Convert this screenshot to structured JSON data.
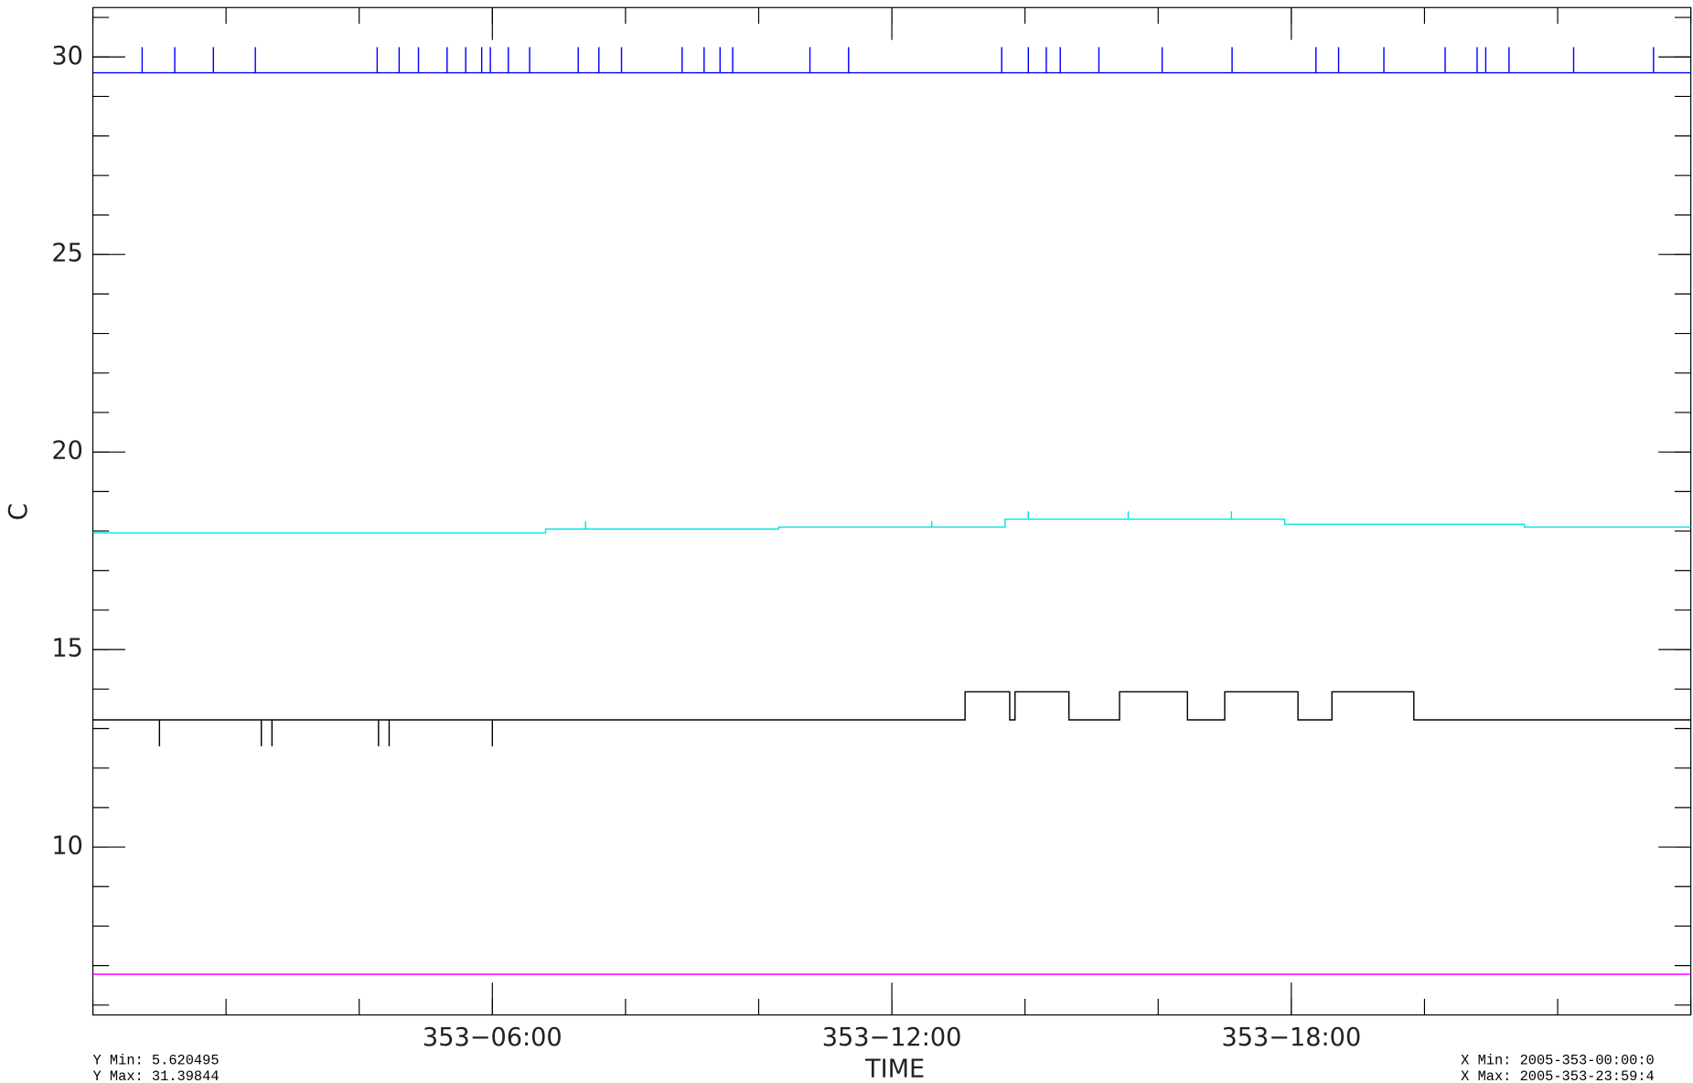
{
  "chart_data": {
    "type": "line",
    "y_label": "C",
    "x_label": "TIME",
    "stats": [
      "Y Min: 5.620495",
      "Y Max: 31.39844",
      "X Min: 2005-353-00:00:0",
      "X Max: 2005-353-23:59:4"
    ],
    "xlim": [
      0,
      24
    ],
    "ylim": [
      5.75,
      31.25
    ],
    "xticks": [
      {
        "value": 6,
        "label": "353−06:00"
      },
      {
        "value": 12,
        "label": "353−12:00"
      },
      {
        "value": 18,
        "label": "353−18:00"
      }
    ],
    "yticks": [
      10,
      15,
      20,
      25,
      30
    ],
    "x_minor_step": 2,
    "y_minor_step": 1,
    "series": [
      {
        "color": "#0000ff",
        "x": [
          0,
          0.74,
          0.74,
          0.74,
          1.23,
          1.23,
          1.23,
          1.81,
          1.81,
          1.81,
          2.44,
          2.44,
          2.44,
          4.27,
          4.27,
          4.27,
          4.6,
          4.6,
          4.6,
          4.89,
          4.89,
          4.89,
          5.32,
          5.32,
          5.32,
          5.6,
          5.6,
          5.6,
          5.84,
          5.84,
          5.84,
          5.97,
          5.97,
          5.97,
          6.24,
          6.24,
          6.24,
          6.56,
          6.56,
          6.56,
          7.29,
          7.29,
          7.29,
          7.6,
          7.6,
          7.6,
          7.94,
          7.94,
          7.94,
          8.85,
          8.85,
          8.85,
          9.18,
          9.18,
          9.18,
          9.42,
          9.42,
          9.42,
          9.61,
          9.61,
          9.61,
          10.77,
          10.77,
          10.77,
          11.35,
          11.35,
          11.35,
          13.65,
          13.65,
          13.65,
          14.05,
          14.05,
          14.05,
          14.32,
          14.32,
          14.32,
          14.53,
          14.53,
          14.53,
          15.11,
          15.11,
          15.11,
          16.06,
          16.06,
          16.06,
          17.11,
          17.11,
          17.11,
          18.37,
          18.37,
          18.37,
          18.71,
          18.71,
          18.71,
          19.39,
          19.39,
          19.39,
          20.31,
          20.31,
          20.31,
          20.79,
          20.79,
          20.79,
          20.92,
          20.92,
          20.92,
          21.27,
          21.27,
          21.27,
          22.24,
          22.24,
          22.24,
          23.44,
          23.44,
          23.44,
          24
        ],
        "values": [
          29.6,
          29.6,
          30.25,
          29.6,
          29.6,
          30.25,
          29.6,
          29.6,
          30.25,
          29.6,
          29.6,
          30.25,
          29.6,
          29.6,
          30.25,
          29.6,
          29.6,
          30.25,
          29.6,
          29.6,
          30.25,
          29.6,
          29.6,
          30.25,
          29.6,
          29.6,
          30.25,
          29.6,
          29.6,
          30.25,
          29.6,
          29.6,
          30.25,
          29.6,
          29.6,
          30.25,
          29.6,
          29.6,
          30.25,
          29.6,
          29.6,
          30.25,
          29.6,
          29.6,
          30.25,
          29.6,
          29.6,
          30.25,
          29.6,
          29.6,
          30.25,
          29.6,
          29.6,
          30.25,
          29.6,
          29.6,
          30.25,
          29.6,
          29.6,
          30.25,
          29.6,
          29.6,
          30.25,
          29.6,
          29.6,
          30.25,
          29.6,
          29.6,
          30.25,
          29.6,
          29.6,
          30.25,
          29.6,
          29.6,
          30.25,
          29.6,
          29.6,
          30.25,
          29.6,
          29.6,
          30.25,
          29.6,
          29.6,
          30.25,
          29.6,
          29.6,
          30.25,
          29.6,
          29.6,
          30.25,
          29.6,
          29.6,
          30.25,
          29.6,
          29.6,
          30.25,
          29.6,
          29.6,
          30.25,
          29.6,
          29.6,
          30.25,
          29.6,
          29.6,
          30.25,
          29.6,
          29.6,
          30.25,
          29.6,
          29.6,
          30.25,
          29.6,
          29.6,
          30.25,
          29.6,
          29.6
        ]
      },
      {
        "color": "#00e5e5",
        "x": [
          0,
          6.8,
          6.8,
          7.4,
          7.4,
          7.4,
          10.3,
          10.3,
          12.6,
          12.6,
          12.6,
          13.7,
          13.7,
          14.05,
          14.05,
          14.05,
          15.55,
          15.55,
          15.55,
          17.1,
          17.1,
          17.1,
          17.9,
          17.9,
          21.5,
          21.5,
          24
        ],
        "values": [
          17.95,
          17.95,
          18.05,
          18.05,
          18.25,
          18.05,
          18.05,
          18.1,
          18.1,
          18.25,
          18.1,
          18.1,
          18.3,
          18.3,
          18.5,
          18.3,
          18.3,
          18.5,
          18.3,
          18.3,
          18.5,
          18.3,
          18.3,
          18.17,
          18.17,
          18.1,
          18.1
        ]
      },
      {
        "color": "#000000",
        "x": [
          0,
          1.0,
          1.0,
          1.0,
          2.53,
          2.53,
          2.53,
          2.69,
          2.69,
          2.69,
          4.29,
          4.29,
          4.29,
          4.45,
          4.45,
          4.45,
          6.0,
          6.0,
          6.0,
          13.1,
          13.1,
          13.77,
          13.77,
          13.85,
          13.85,
          14.66,
          14.66,
          15.42,
          15.42,
          16.44,
          16.44,
          17.0,
          17.0,
          18.1,
          18.1,
          18.61,
          18.61,
          19.84,
          19.84,
          20.15,
          20.15,
          24
        ],
        "values": [
          13.22,
          13.22,
          12.55,
          13.22,
          13.22,
          12.55,
          13.22,
          13.22,
          12.55,
          13.22,
          13.22,
          12.55,
          13.22,
          13.22,
          12.55,
          13.22,
          13.22,
          12.55,
          13.22,
          13.22,
          13.93,
          13.93,
          13.22,
          13.22,
          13.93,
          13.93,
          13.22,
          13.22,
          13.93,
          13.93,
          13.22,
          13.22,
          13.93,
          13.93,
          13.22,
          13.22,
          13.93,
          13.93,
          13.22,
          13.22,
          13.22,
          13.22
        ]
      },
      {
        "color": "#ff00ff",
        "x": [
          0,
          24
        ],
        "values": [
          6.78,
          6.78
        ]
      }
    ]
  }
}
